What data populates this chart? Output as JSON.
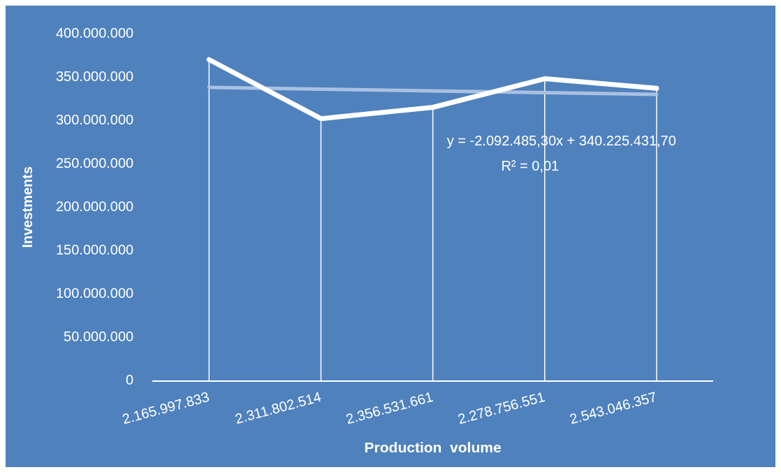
{
  "chart_data": {
    "type": "line",
    "xlabel": "Production  volume",
    "ylabel": "Investments",
    "categories": [
      "2.165.997.833",
      "2.311.802.514",
      "2.356.531.661",
      "2.278.756.551",
      "2.543.046.357"
    ],
    "series": [
      {
        "color": "#ffffff",
        "values": [
          370000000,
          302000000,
          315000000,
          348000000,
          337000000
        ],
        "errors": [
          [
            0,
            370000000
          ],
          [
            0,
            302000000
          ],
          [
            0,
            315000000
          ],
          [
            0,
            348000000
          ],
          [
            0,
            337000000
          ]
        ]
      },
      {
        "type": "line",
        "color": "#a9c1e2",
        "values": [
          338000000,
          336000000,
          334000000,
          332000000,
          330000000
        ]
      }
    ],
    "ylim": [
      0,
      400000000
    ],
    "yticks": [
      {
        "value": 0,
        "label": "0"
      },
      {
        "value": 50000000,
        "label": "50.000.000"
      },
      {
        "value": 100000000,
        "label": "100.000.000"
      },
      {
        "value": 150000000,
        "label": "150.000.000"
      },
      {
        "value": 200000000,
        "label": "200.000.000"
      },
      {
        "value": 250000000,
        "label": "250.000.000"
      },
      {
        "value": 300000000,
        "label": "300.000.000"
      },
      {
        "value": 350000000,
        "label": "350.000.000"
      },
      {
        "value": 400000000,
        "label": "400.000.000"
      }
    ],
    "annotations": [
      "y = -2.092.485,30x + 340.225.431,70",
      "R² = 0,01"
    ],
    "grid": false,
    "legend": false,
    "marker": "none",
    "line_style": "solid"
  }
}
